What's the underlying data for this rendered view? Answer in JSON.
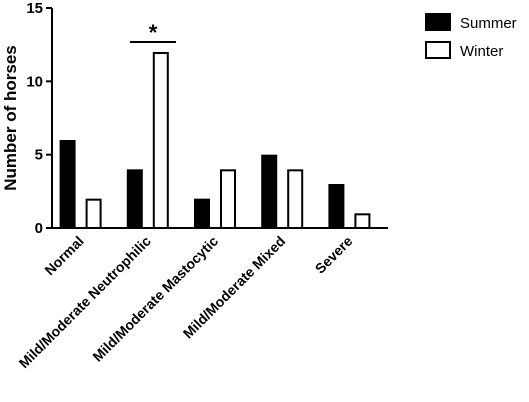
{
  "chart_data": {
    "type": "bar",
    "categories": [
      "Normal",
      "Mild/Moderate Neutrophilic",
      "Mild/Moderate Mastocytic",
      "Mild/Moderate Mixed",
      "Severe"
    ],
    "series": [
      {
        "name": "Summer",
        "values": [
          6,
          4,
          2,
          5,
          3
        ],
        "fill": "#000000"
      },
      {
        "name": "Winter",
        "values": [
          2,
          12,
          4,
          4,
          1
        ],
        "fill": "#ffffff"
      }
    ],
    "ylabel": "Number of horses",
    "xlabel": "",
    "ylim": [
      0,
      15
    ],
    "yticks": [
      "0",
      "5",
      "10",
      "15"
    ],
    "legend_position": "top-right",
    "grid": false,
    "annotations": [
      {
        "text": "*",
        "category": "Mild/Moderate Neutrophilic",
        "type": "significance-bracket"
      }
    ]
  }
}
